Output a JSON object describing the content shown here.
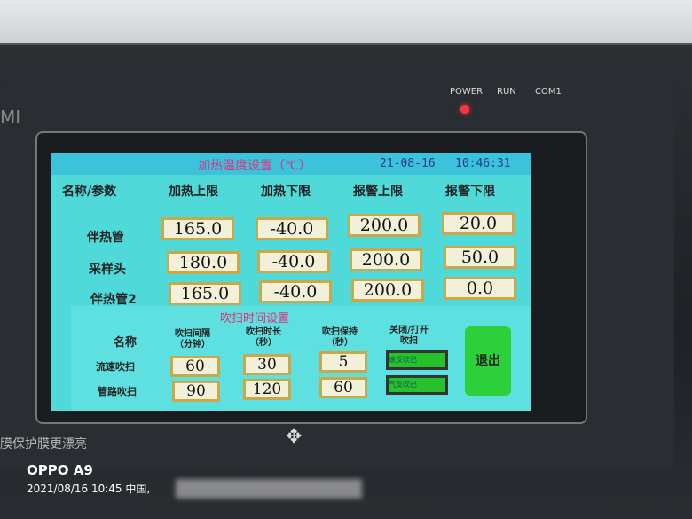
{
  "device": {
    "brand_partial": "MI",
    "indicators": [
      "POWER",
      "RUN",
      "COM1"
    ],
    "slogan_partial": "膜保护膜更漂亮",
    "logo": "diamond-logo-icon"
  },
  "screen": {
    "title": "加热温度设置（℃）",
    "date": "21-08-16",
    "time": "10:46:31",
    "headers": [
      "名称/参数",
      "加热上限",
      "加热下限",
      "报警上限",
      "报警下限"
    ],
    "rows": [
      {
        "name": "伴热管",
        "values": [
          "165.0",
          "-40.0",
          "200.0",
          "20.0"
        ]
      },
      {
        "name": "采样头",
        "values": [
          "180.0",
          "-40.0",
          "200.0",
          "50.0"
        ]
      },
      {
        "name": "伴热管2",
        "values": [
          "165.0",
          "-40.0",
          "200.0",
          "0.0"
        ]
      }
    ],
    "purge": {
      "title": "吹扫时间设置",
      "headers": [
        "名称",
        "吹扫间隔\n（分钟）",
        "吹扫时长\n（秒）",
        "吹扫保持\n（秒）",
        "关闭/打开\n吹扫"
      ],
      "rows": [
        {
          "name": "流速吹扫",
          "values": [
            "60",
            "30",
            "5"
          ],
          "toggle": "速反吹已"
        },
        {
          "name": "管路吹扫",
          "values": [
            "90",
            "120",
            "60"
          ],
          "toggle": "气反吹已"
        }
      ],
      "exit_label": "退出"
    }
  },
  "photo_watermark": {
    "model": "OPPO A9",
    "timestamp": "2021/08/16 10:45  中国,"
  },
  "colors": {
    "screen_bg": "#4fd9d8",
    "title_color": "#e0307a",
    "toggle_on": "#26c22c",
    "input_border": "#c9a84a"
  }
}
